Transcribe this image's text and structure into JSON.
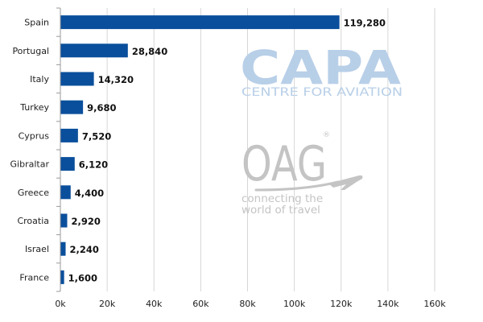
{
  "chart_data": {
    "type": "bar",
    "orientation": "horizontal",
    "title": "",
    "xlabel": "",
    "ylabel": "",
    "categories": [
      "Spain",
      "Portugal",
      "Italy",
      "Turkey",
      "Cyprus",
      "Gibraltar",
      "Greece",
      "Croatia",
      "Israel",
      "France"
    ],
    "values": [
      119280,
      28840,
      14320,
      9680,
      7520,
      6120,
      4400,
      2920,
      2240,
      1600
    ],
    "value_labels": [
      "119,280",
      "28,840",
      "14,320",
      "9,680",
      "7,520",
      "6,120",
      "4,400",
      "2,920",
      "2,240",
      "1,600"
    ],
    "xlim": [
      0,
      160000
    ],
    "xticks": [
      0,
      20000,
      40000,
      60000,
      80000,
      100000,
      120000,
      140000,
      160000
    ],
    "xtick_labels": [
      "0k",
      "20k",
      "40k",
      "60k",
      "80k",
      "100k",
      "120k",
      "140k",
      "160k"
    ],
    "grid": true,
    "bar_color": "#0a4f9c"
  },
  "watermarks": {
    "capa_main": "CAPA",
    "capa_sub": "CENTRE FOR AVIATION",
    "capa_color": "#b8cfe8",
    "oag_main": "OAG",
    "oag_mark": "®",
    "oag_tagline_1": "connecting the",
    "oag_tagline_2": "world of travel",
    "oag_color": "#c4c4c4",
    "plane_icon": "airplane-icon"
  }
}
